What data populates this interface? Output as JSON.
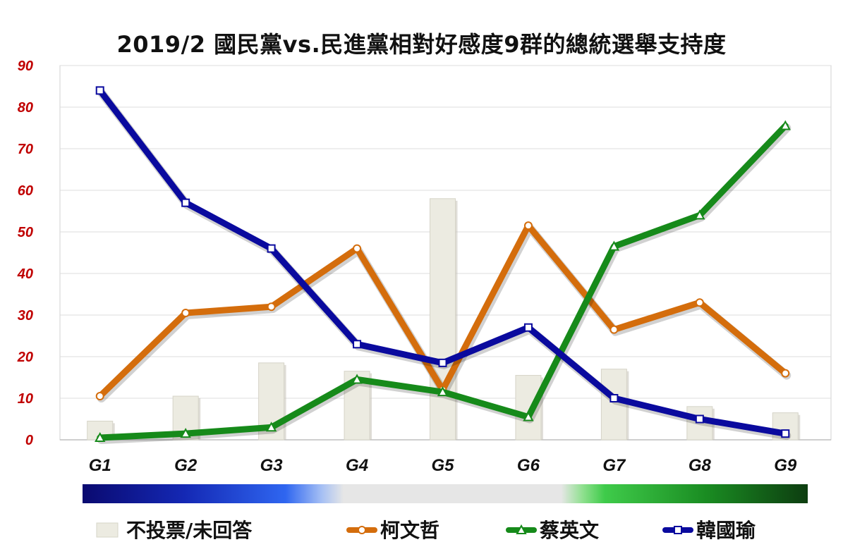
{
  "chart_data": {
    "type": "bar",
    "title": "2019/2 國民黨vs.民進黨相對好感度9群的總統選舉支持度",
    "categories": [
      "G1",
      "G2",
      "G3",
      "G4",
      "G5",
      "G6",
      "G7",
      "G8",
      "G9"
    ],
    "ylim": [
      0,
      90
    ],
    "yticks": [
      0,
      10,
      20,
      30,
      40,
      50,
      60,
      70,
      80,
      90
    ],
    "grid": true,
    "legend_position": "bottom",
    "series": [
      {
        "name": "不投票/未回答",
        "kind": "bar",
        "color": "#ecebe1",
        "values": [
          4.5,
          10.5,
          18.5,
          16.5,
          58,
          15.5,
          17,
          8,
          6.5
        ]
      },
      {
        "name": "柯文哲",
        "kind": "line",
        "marker": "circle",
        "color": "#d46d0c",
        "values": [
          10.5,
          30.5,
          32,
          46,
          12,
          51.5,
          26.5,
          33,
          16
        ]
      },
      {
        "name": "蔡英文",
        "kind": "line",
        "marker": "triangle",
        "color": "#168a1a",
        "values": [
          0.5,
          1.5,
          3,
          14.5,
          11.5,
          5.5,
          46.5,
          54,
          75.5
        ]
      },
      {
        "name": "韓國瑜",
        "kind": "line",
        "marker": "square",
        "color": "#0a0a9e",
        "values": [
          84,
          57,
          46,
          23,
          18.5,
          27,
          10,
          5,
          1.5
        ]
      }
    ]
  }
}
